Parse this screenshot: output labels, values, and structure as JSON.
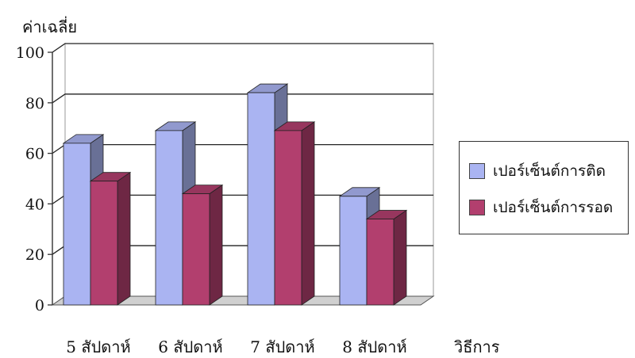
{
  "chart_data": {
    "type": "bar",
    "title": "",
    "ylabel": "ค่าเฉลี่ย",
    "xlabel": "วิธีการ",
    "ylim": [
      0,
      100
    ],
    "yticks": [
      0,
      20,
      40,
      60,
      80,
      100
    ],
    "grid": true,
    "legend_position": "right",
    "categories": [
      "5 สัปดาห์",
      "6 สัปดาห์",
      "7 สัปดาห์",
      "8 สัปดาห์"
    ],
    "series": [
      {
        "name": "เปอร์เซ็นต์การติด",
        "values": [
          64,
          69,
          84,
          43
        ],
        "color": "#aab4f2"
      },
      {
        "name": "เปอร์เซ็นต์การรอด",
        "values": [
          49,
          44,
          69,
          34
        ],
        "color": "#b23f6e"
      }
    ]
  }
}
